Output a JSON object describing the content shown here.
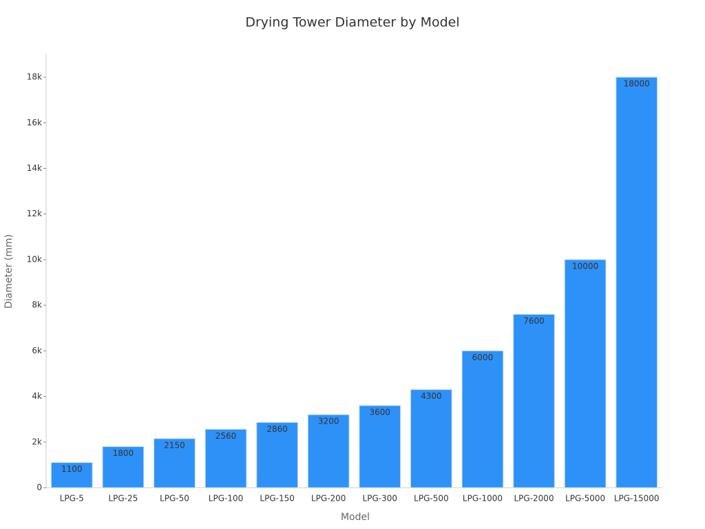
{
  "chart_data": {
    "type": "bar",
    "title": "Drying Tower Diameter by Model",
    "x_label": "Model",
    "y_label": "Diameter (mm)",
    "categories": [
      "LPG-5",
      "LPG-25",
      "LPG-50",
      "LPG-100",
      "LPG-150",
      "LPG-200",
      "LPG-300",
      "LPG-500",
      "LPG-1000",
      "LPG-2000",
      "LPG-5000",
      "LPG-15000"
    ],
    "values": [
      1100,
      1800,
      2150,
      2560,
      2860,
      3200,
      3600,
      4300,
      6000,
      7600,
      10000,
      18000
    ],
    "color": "#2e91f7",
    "ylim": [
      0,
      19000
    ],
    "yticks": [
      0,
      {
        "value": 2000,
        "label": "2k"
      },
      {
        "value": 4000,
        "label": "4k"
      },
      {
        "value": 6000,
        "label": "6k"
      },
      {
        "value": 8000,
        "label": "8k"
      },
      {
        "value": 10000,
        "label": "10k"
      },
      {
        "value": 12000,
        "label": "12k"
      },
      {
        "value": 14000,
        "label": "14k"
      },
      {
        "value": 16000,
        "label": "16k"
      },
      {
        "value": 18000,
        "label": "18k"
      }
    ],
    "grid": false
  }
}
